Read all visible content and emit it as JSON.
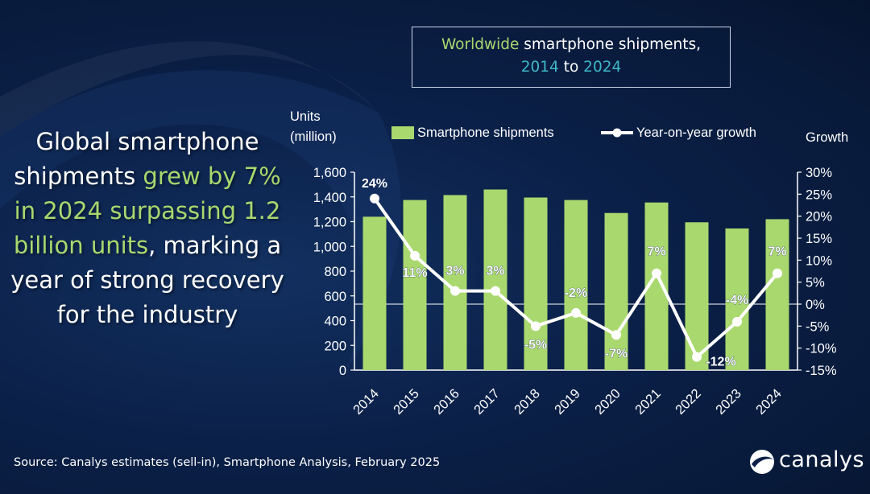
{
  "headline": {
    "part1": "Global smartphone shipments ",
    "part2": "grew by 7% in 2024 surpassing 1.2 billion units",
    "part3": ", marking a year of strong recovery for the industry"
  },
  "title": {
    "part1": "Worldwide",
    "part2": " smartphone shipments,",
    "part3": "2014",
    "part4": " to ",
    "part5": "2024"
  },
  "source": "Source: Canalys estimates (sell-in), Smartphone Analysis, February 2025",
  "logo": {
    "text": "canalys",
    "icon": "canalys-swirl-logo-icon"
  },
  "colors": {
    "bar": "#a9d86e",
    "line": "#ffffff",
    "highlight_green": "#a9d86e",
    "highlight_teal": "#3fb8c8",
    "background": "#0b2048"
  },
  "chart_data": {
    "type": "bar",
    "categories": [
      "2014",
      "2015",
      "2016",
      "2017",
      "2018",
      "2019",
      "2020",
      "2021",
      "2022",
      "2023",
      "2024"
    ],
    "series": [
      {
        "name": "Smartphone shipments",
        "type": "bar",
        "axis": "left",
        "values": [
          1240,
          1375,
          1415,
          1460,
          1395,
          1375,
          1270,
          1355,
          1195,
          1145,
          1220
        ]
      },
      {
        "name": "Year-on-year growth",
        "type": "line",
        "axis": "right",
        "values": [
          24,
          11,
          3,
          3,
          -5,
          -2,
          -7,
          7,
          -12,
          -4,
          7
        ],
        "labels": [
          "24%",
          "11%",
          "3%",
          "3%",
          "-5%",
          "-2%",
          "-7%",
          "7%",
          "-12%",
          "-4%",
          "7%"
        ]
      }
    ],
    "ylabel_left": [
      "Units",
      "(million)"
    ],
    "ylabel_right": "Growth",
    "ylim_left": [
      0,
      1600
    ],
    "ylim_right": [
      -15,
      30
    ],
    "yticks_left": [
      "0",
      "200",
      "400",
      "600",
      "800",
      "1,000",
      "1,200",
      "1,400",
      "1,600"
    ],
    "yticks_right": [
      "-15%",
      "-10%",
      "-5%",
      "0%",
      "5%",
      "10%",
      "15%",
      "20%",
      "25%",
      "30%"
    ],
    "legend_position": "top",
    "grid": false
  }
}
